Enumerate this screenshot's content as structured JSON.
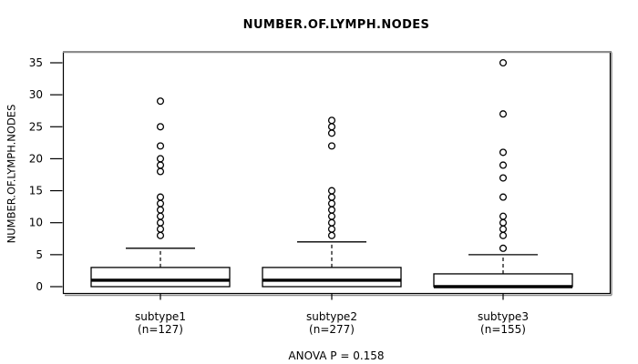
{
  "chart_data": {
    "type": "boxplot",
    "title": "NUMBER.OF.LYMPH.NODES",
    "ylabel": "NUMBER.OF.LYMPH.NODES",
    "annotation": "ANOVA P = 0.158",
    "ylim": [
      0,
      35
    ],
    "yticks": [
      0,
      5,
      10,
      15,
      20,
      25,
      30,
      35
    ],
    "grid": false,
    "legend": "none",
    "colors": {
      "stroke": "#000000",
      "fill": "#ffffff",
      "frame_shadow": "#8c8c8c"
    },
    "groups": [
      {
        "label": "subtype1",
        "sublabel": "(n=127)",
        "n": 127,
        "q1": 0,
        "median": 1,
        "q3": 3,
        "whisker_low": 0,
        "whisker_high": 6,
        "outliers": [
          8,
          9,
          10,
          11,
          12,
          13,
          14,
          18,
          19,
          20,
          22,
          25,
          29
        ]
      },
      {
        "label": "subtype2",
        "sublabel": "(n=277)",
        "n": 277,
        "q1": 0,
        "median": 1,
        "q3": 3,
        "whisker_low": 0,
        "whisker_high": 7,
        "outliers": [
          8,
          9,
          10,
          11,
          12,
          13,
          14,
          15,
          22,
          24,
          25,
          26
        ]
      },
      {
        "label": "subtype3",
        "sublabel": "(n=155)",
        "n": 155,
        "q1": 0,
        "median": 0,
        "q3": 2,
        "whisker_low": 0,
        "whisker_high": 5,
        "outliers": [
          6,
          8,
          9,
          10,
          11,
          14,
          17,
          19,
          21,
          27,
          35
        ]
      }
    ]
  }
}
